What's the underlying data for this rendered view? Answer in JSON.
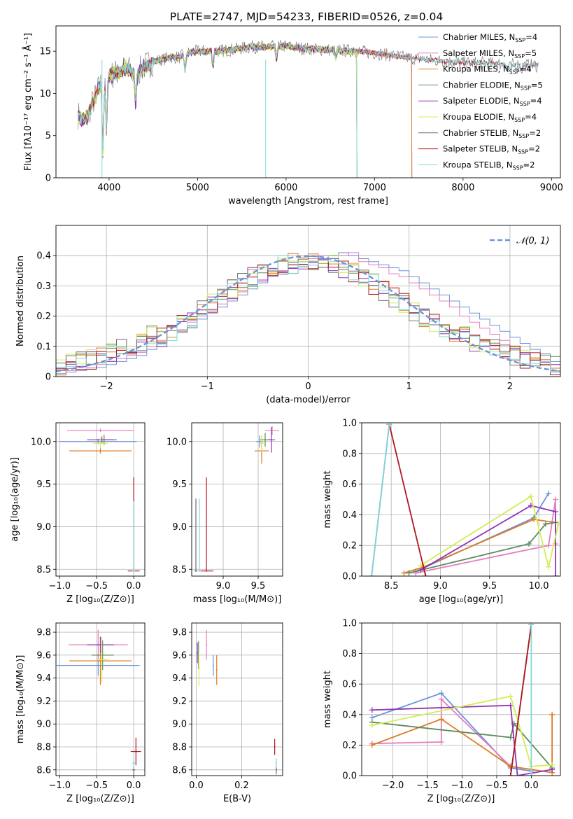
{
  "title": "PLATE=2747, MJD=54233, FIBERID=0526, z=0.04",
  "colors": [
    "#6b94d8",
    "#e37fbc",
    "#e07b24",
    "#5c8b5c",
    "#9035b5",
    "#d4ec55",
    "#6e6e6e",
    "#b01820",
    "#84d6de"
  ],
  "chart_data": [
    {
      "id": "spectrum",
      "type": "line",
      "xlabel": "wavelength [Angstrom, rest frame]",
      "ylabel": "Flux [fλ10⁻¹⁷ erg cm⁻² s⁻¹ Å⁻¹]",
      "xlim": [
        3400,
        9100
      ],
      "ylim": [
        0,
        18
      ],
      "xticks": [
        4000,
        5000,
        6000,
        7000,
        8000,
        9000
      ],
      "yticks": [
        0,
        5,
        10,
        15
      ],
      "legend_position": "top-right",
      "series": [
        {
          "name": "Chabrier MILES, N_SSP=4",
          "x_range": [
            3650,
            7420
          ],
          "cutoff": true
        },
        {
          "name": "Salpeter MILES, N_SSP=5",
          "x_range": [
            3650,
            7420
          ],
          "cutoff": true
        },
        {
          "name": "Kroupa MILES, N_SSP=4",
          "x_range": [
            3650,
            7420
          ],
          "cutoff": true
        },
        {
          "name": "Chabrier ELODIE, N_SSP=5",
          "x_range": [
            3650,
            6800
          ],
          "cutoff": true
        },
        {
          "name": "Salpeter ELODIE, N_SSP=4",
          "x_range": [
            3650,
            6800
          ],
          "cutoff": true
        },
        {
          "name": "Kroupa ELODIE, N_SSP=4",
          "x_range": [
            3650,
            6800
          ],
          "cutoff": true
        },
        {
          "name": "Chabrier STELIB, N_SSP=2",
          "x_range": [
            3650,
            8850
          ],
          "cutoff": false
        },
        {
          "name": "Salpeter STELIB, N_SSP=2",
          "x_range": [
            3650,
            8850
          ],
          "cutoff": false
        },
        {
          "name": "Kroupa STELIB, N_SSP=2",
          "x_range": [
            3650,
            8850
          ],
          "cutoff": false
        }
      ],
      "continuum": [
        [
          3650,
          7.5
        ],
        [
          3700,
          6.8
        ],
        [
          3750,
          7.0
        ],
        [
          3800,
          8.5
        ],
        [
          3900,
          11.0
        ],
        [
          4000,
          12.0
        ],
        [
          4100,
          12.5
        ],
        [
          4200,
          13.0
        ],
        [
          4300,
          12.2
        ],
        [
          4400,
          13.2
        ],
        [
          4500,
          13.8
        ],
        [
          4600,
          14.0
        ],
        [
          4700,
          14.3
        ],
        [
          4800,
          14.3
        ],
        [
          4900,
          14.8
        ],
        [
          5000,
          15.0
        ],
        [
          5200,
          15.0
        ],
        [
          5400,
          15.2
        ],
        [
          5600,
          15.5
        ],
        [
          5800,
          15.5
        ],
        [
          6000,
          15.6
        ],
        [
          6200,
          15.3
        ],
        [
          6400,
          15.2
        ],
        [
          6600,
          15.1
        ],
        [
          6800,
          15.0
        ],
        [
          7000,
          14.8
        ],
        [
          7200,
          14.5
        ],
        [
          7400,
          14.2
        ],
        [
          7600,
          14.0
        ],
        [
          7800,
          13.8
        ],
        [
          8000,
          13.6
        ],
        [
          8200,
          13.6
        ],
        [
          8400,
          13.5
        ],
        [
          8600,
          13.4
        ],
        [
          8850,
          13.3
        ]
      ],
      "dips": [
        [
          3930,
          3.0
        ],
        [
          3970,
          5.5
        ],
        [
          4300,
          8.5
        ],
        [
          4860,
          12.5
        ],
        [
          5175,
          13.0
        ],
        [
          5890,
          14.0
        ],
        [
          6563,
          14.2
        ],
        [
          8500,
          12.8
        ],
        [
          8540,
          12.8
        ],
        [
          8660,
          12.8
        ]
      ],
      "spikes": [
        [
          5770,
          0
        ],
        [
          6800,
          0
        ],
        [
          3920,
          0
        ]
      ]
    },
    {
      "id": "residual-histogram",
      "type": "bar",
      "xlabel": "(data-model)/error",
      "ylabel": "Normed distribution",
      "xlim": [
        -2.5,
        2.5
      ],
      "ylim": [
        0,
        0.5
      ],
      "xticks": [
        -2,
        -1,
        0,
        1,
        2
      ],
      "yticks": [
        0,
        0.1,
        0.2,
        0.3,
        0.4
      ],
      "bin_width": 0.1,
      "legend_position": "top-right",
      "reference_curve": {
        "name": "N(0,1)",
        "mean": 0,
        "sigma": 1,
        "style": "dashed"
      },
      "series_note": "9 step histograms, one per model",
      "series": [
        {
          "name": "Chabrier MILES, N_SSP=4",
          "values": [
            0.01,
            0.015,
            0.02,
            0.025,
            0.03,
            0.04,
            0.05,
            0.06,
            0.07,
            0.09,
            0.11,
            0.13,
            0.15,
            0.17,
            0.19,
            0.21,
            0.23,
            0.25,
            0.27,
            0.29,
            0.31,
            0.33,
            0.35,
            0.36,
            0.37,
            0.38,
            0.39,
            0.4,
            0.41,
            0.4,
            0.39,
            0.38,
            0.37,
            0.36,
            0.35,
            0.33,
            0.31,
            0.29,
            0.27,
            0.25,
            0.23,
            0.21,
            0.19,
            0.17,
            0.15,
            0.13,
            0.11,
            0.09,
            0.07,
            0.05
          ]
        },
        {
          "name": "Salpeter MILES, N_SSP=5",
          "values": [
            0.02,
            0.02,
            0.03,
            0.03,
            0.04,
            0.05,
            0.06,
            0.07,
            0.08,
            0.1,
            0.12,
            0.13,
            0.15,
            0.18,
            0.2,
            0.22,
            0.24,
            0.26,
            0.28,
            0.3,
            0.32,
            0.34,
            0.35,
            0.37,
            0.38,
            0.39,
            0.4,
            0.39,
            0.4,
            0.41,
            0.38,
            0.37,
            0.36,
            0.34,
            0.33,
            0.31,
            0.29,
            0.27,
            0.25,
            0.23,
            0.2,
            0.18,
            0.16,
            0.14,
            0.12,
            0.1,
            0.08,
            0.06,
            0.05,
            0.04
          ]
        }
      ]
    },
    {
      "id": "age-vs-Z",
      "type": "scatter",
      "xlabel": "Z [log₁₀(Z/Z⊙)]",
      "ylabel": "age  [log₁₀(age/yr)]",
      "xlim": [
        -1.05,
        0.15
      ],
      "ylim": [
        8.42,
        10.22
      ],
      "xticks": [
        -1.0,
        -0.5,
        0.0
      ],
      "yticks": [
        8.5,
        9.0,
        9.5,
        10.0
      ],
      "points": [
        {
          "x": -0.48,
          "y": 10.0,
          "xerr": 0.52,
          "yerr": 0.03
        },
        {
          "x": -0.45,
          "y": 10.13,
          "xerr": 0.45,
          "yerr": 0.02
        },
        {
          "x": -0.45,
          "y": 9.89,
          "xerr": 0.42,
          "yerr": 0.03
        },
        {
          "x": -0.4,
          "y": 10.02,
          "xerr": 0.12,
          "yerr": 0.06
        },
        {
          "x": -0.43,
          "y": 10.02,
          "xerr": 0.2,
          "yerr": 0.04
        },
        {
          "x": -0.45,
          "y": 9.98,
          "xerr": 0.1,
          "yerr": 0.06
        },
        {
          "x": 0.0,
          "y": 8.48,
          "xerr": 0.02,
          "yerr": 0.03
        },
        {
          "x": 0.0,
          "y": 8.48,
          "xerr": 0.08,
          "yerr": 1.1
        },
        {
          "x": 0.0,
          "y": 8.48,
          "xerr": 0.02,
          "yerr": 0.82
        }
      ]
    },
    {
      "id": "age-vs-mass",
      "type": "scatter",
      "xlabel": "mass [log₁₀(M/M⊙)]",
      "ylabel": "",
      "xlim": [
        8.55,
        9.85
      ],
      "ylim": [
        8.42,
        10.22
      ],
      "xticks": [
        9.0,
        9.5
      ],
      "yticks": [
        8.5,
        9.0,
        9.5,
        10.0
      ],
      "points": [
        {
          "x": 9.52,
          "y": 10.0,
          "xerr": 0.05,
          "yerr": 0.07
        },
        {
          "x": 9.7,
          "y": 10.13,
          "xerr": 0.1,
          "yerr": 0.05
        },
        {
          "x": 9.55,
          "y": 9.89,
          "xerr": 0.1,
          "yerr": 0.15
        },
        {
          "x": 9.6,
          "y": 10.02,
          "xerr": 0.08,
          "yerr": 0.08
        },
        {
          "x": 9.69,
          "y": 10.02,
          "xerr": 0.05,
          "yerr": 0.15
        },
        {
          "x": 9.55,
          "y": 9.98,
          "xerr": 0.03,
          "yerr": 0.1
        },
        {
          "x": 8.61,
          "y": 8.48,
          "xerr": 0.02,
          "yerr": 0.85
        },
        {
          "x": 8.76,
          "y": 8.48,
          "xerr": 0.1,
          "yerr": 1.1
        },
        {
          "x": 8.66,
          "y": 8.48,
          "xerr": 0.02,
          "yerr": 0.85
        }
      ]
    },
    {
      "id": "massweight-vs-age",
      "type": "line",
      "xlabel": "age  [log₁₀(age/yr)]",
      "ylabel": "mass weight",
      "xlim": [
        8.2,
        10.22
      ],
      "ylim": [
        0,
        1
      ],
      "xticks": [
        8.5,
        9.0,
        9.5,
        10.0
      ],
      "yticks": [
        0,
        0.2,
        0.4,
        0.6,
        0.8,
        1.0
      ],
      "series": [
        {
          "name": "Chabrier MILES, N_SSP=4",
          "x": [
            8.75,
            9.95,
            10.1
          ],
          "y": [
            0.03,
            0.38,
            0.54
          ]
        },
        {
          "name": "Salpeter MILES, N_SSP=5",
          "x": [
            8.75,
            10.1,
            10.17,
            10.17
          ],
          "y": [
            0.02,
            0.2,
            0.5,
            0.21
          ]
        },
        {
          "name": "Kroupa MILES, N_SSP=4",
          "x": [
            8.63,
            8.83,
            9.95,
            10.17
          ],
          "y": [
            0.02,
            0.06,
            0.37,
            0.35
          ]
        },
        {
          "name": "Chabrier ELODIE, N_SSP=5",
          "x": [
            8.68,
            9.9,
            10.07,
            10.17
          ],
          "y": [
            0.02,
            0.21,
            0.34,
            0.35
          ]
        },
        {
          "name": "Salpeter ELODIE, N_SSP=4",
          "x": [
            8.8,
            9.92,
            10.17,
            10.17
          ],
          "y": [
            0.04,
            0.46,
            0.42,
            0.0
          ]
        },
        {
          "name": "Kroupa ELODIE, N_SSP=4",
          "x": [
            8.8,
            9.92,
            10.1,
            10.2
          ],
          "y": [
            0.07,
            0.52,
            0.06,
            0.34
          ]
        },
        {
          "name": "Chabrier STELIB, N_SSP=2",
          "x": [
            8.3,
            8.48
          ],
          "y": [
            0.0,
            0.99
          ]
        },
        {
          "name": "Salpeter STELIB, N_SSP=2",
          "x": [
            8.48,
            8.85
          ],
          "y": [
            0.99,
            0.0
          ]
        },
        {
          "name": "Kroupa STELIB, N_SSP=2",
          "x": [
            8.3,
            8.48
          ],
          "y": [
            0.0,
            0.99
          ]
        }
      ]
    },
    {
      "id": "mass-vs-Z",
      "type": "scatter",
      "xlabel": "Z [log₁₀(Z/Z⊙)]",
      "ylabel": "mass [log₁₀(M/M⊙)]",
      "xlim": [
        -1.05,
        0.15
      ],
      "ylim": [
        8.55,
        9.88
      ],
      "xticks": [
        -1.0,
        -0.5,
        0.0
      ],
      "yticks": [
        8.6,
        8.8,
        9.0,
        9.2,
        9.4,
        9.6,
        9.8
      ],
      "points": [
        {
          "x": -0.48,
          "y": 9.51,
          "xerr": 0.56,
          "yerr": 0.09
        },
        {
          "x": -0.48,
          "y": 9.69,
          "xerr": 0.4,
          "yerr": 0.13
        },
        {
          "x": -0.45,
          "y": 9.55,
          "xerr": 0.42,
          "yerr": 0.21
        },
        {
          "x": -0.42,
          "y": 9.6,
          "xerr": 0.15,
          "yerr": 0.13
        },
        {
          "x": -0.45,
          "y": 9.69,
          "xerr": 0.18,
          "yerr": 0.07
        },
        {
          "x": -0.43,
          "y": 9.56,
          "xerr": 0.08,
          "yerr": 0.2
        },
        {
          "x": 0.0,
          "y": 8.6,
          "xerr": 0.02,
          "yerr": 0.05
        },
        {
          "x": 0.03,
          "y": 8.76,
          "xerr": 0.07,
          "yerr": 0.12
        },
        {
          "x": 0.0,
          "y": 8.66,
          "xerr": 0.02,
          "yerr": 0.05
        }
      ]
    },
    {
      "id": "mass-vs-EBV",
      "type": "scatter",
      "xlabel": "E(B-V)",
      "ylabel": "",
      "xlim": [
        -0.02,
        0.38
      ],
      "ylim": [
        8.55,
        9.88
      ],
      "xticks": [
        0.0,
        0.2
      ],
      "yticks": [
        8.6,
        8.8,
        9.0,
        9.2,
        9.4,
        9.6,
        9.8
      ],
      "points": [
        {
          "x": 0.075,
          "y": 9.51,
          "yerr": 0.09
        },
        {
          "x": 0.045,
          "y": 9.69,
          "yerr": 0.13
        },
        {
          "x": 0.09,
          "y": 9.47,
          "yerr": 0.13
        },
        {
          "x": 0.01,
          "y": 9.6,
          "yerr": 0.12
        },
        {
          "x": 0.005,
          "y": 9.62,
          "yerr": 0.09
        },
        {
          "x": 0.012,
          "y": 9.48,
          "yerr": 0.15
        },
        {
          "x": 0.352,
          "y": 8.6,
          "yerr": 0.04
        },
        {
          "x": 0.345,
          "y": 8.8,
          "yerr": 0.07
        },
        {
          "x": 0.352,
          "y": 8.66,
          "yerr": 0.04
        }
      ]
    },
    {
      "id": "massweight-vs-Z",
      "type": "line",
      "xlabel": "Z [log₁₀(Z/Z⊙)]",
      "ylabel": "mass weight",
      "xlim": [
        -2.45,
        0.42
      ],
      "ylim": [
        0,
        1
      ],
      "xticks": [
        -2.0,
        -1.5,
        -1.0,
        -0.5,
        0.0
      ],
      "yticks": [
        0,
        0.2,
        0.4,
        0.6,
        0.8,
        1.0
      ],
      "series": [
        {
          "name": "Chabrier MILES, N_SSP=4",
          "x": [
            -2.3,
            -1.3,
            -0.3,
            0.0
          ],
          "y": [
            0.38,
            0.54,
            0.05,
            0.03
          ]
        },
        {
          "name": "Salpeter MILES, N_SSP=5",
          "x": [
            -2.3,
            -1.3,
            -1.3,
            -0.3,
            0.3
          ],
          "y": [
            0.21,
            0.22,
            0.5,
            0.06,
            0.02
          ]
        },
        {
          "name": "Kroupa MILES, N_SSP=4",
          "x": [
            -2.3,
            -1.3,
            -0.3,
            0.3,
            0.3
          ],
          "y": [
            0.2,
            0.37,
            0.06,
            0.02,
            0.4
          ]
        },
        {
          "name": "Chabrier ELODIE, N_SSP=5",
          "x": [
            -2.3,
            -0.3,
            -0.25,
            0.3
          ],
          "y": [
            0.35,
            0.25,
            0.34,
            0.05
          ]
        },
        {
          "name": "Salpeter ELODIE, N_SSP=4",
          "x": [
            -2.3,
            -0.3,
            -0.2,
            0.3
          ],
          "y": [
            0.43,
            0.46,
            0.0,
            0.04
          ]
        },
        {
          "name": "Kroupa ELODIE, N_SSP=4",
          "x": [
            -2.3,
            -0.3,
            0.0,
            0.3
          ],
          "y": [
            0.33,
            0.52,
            0.06,
            0.07
          ]
        },
        {
          "name": "Chabrier STELIB, N_SSP=2",
          "x": [
            -0.3,
            0.0
          ],
          "y": [
            0.0,
            0.99
          ]
        },
        {
          "name": "Salpeter STELIB, N_SSP=2",
          "x": [
            -0.3,
            0.0
          ],
          "y": [
            0.0,
            0.99
          ]
        },
        {
          "name": "Kroupa STELIB, N_SSP=2",
          "x": [
            0.0,
            0.0
          ],
          "y": [
            0.0,
            0.99
          ]
        }
      ]
    }
  ]
}
